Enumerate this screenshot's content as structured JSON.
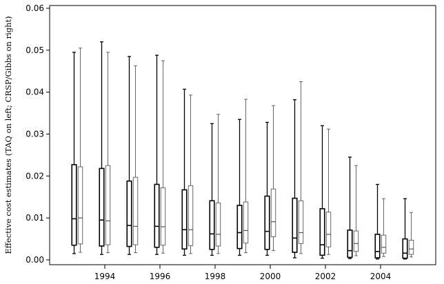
{
  "chart_data": {
    "type": "boxplot",
    "ylabel": "Effective cost estimates (TAQ on left; CRSP/Gibbs on right)",
    "xlabel": "",
    "ylim": [
      0,
      0.06
    ],
    "yticks": [
      0,
      0.01,
      0.02,
      0.03,
      0.04,
      0.05,
      0.06
    ],
    "ytick_labels": [
      "0.00",
      "0.01",
      "0.02",
      "0.03",
      "0.04",
      "0.05",
      "0.06"
    ],
    "xlim": [
      1992,
      2006
    ],
    "xticks": [
      1994,
      1996,
      1998,
      2000,
      2002,
      2004
    ],
    "xtick_labels": [
      "1994",
      "1996",
      "1998",
      "2000",
      "2002",
      "2004"
    ],
    "grid": false,
    "groups": [
      {
        "year": 1993,
        "taq": {
          "whisker_low": 0.0015,
          "q1": 0.0035,
          "median": 0.0098,
          "q3": 0.0227,
          "whisker_high": 0.0495
        },
        "crsp": {
          "whisker_low": 0.0018,
          "q1": 0.0038,
          "median": 0.01,
          "q3": 0.0222,
          "whisker_high": 0.0505
        }
      },
      {
        "year": 1994,
        "taq": {
          "whisker_low": 0.0013,
          "q1": 0.0033,
          "median": 0.0095,
          "q3": 0.0218,
          "whisker_high": 0.052
        },
        "crsp": {
          "whisker_low": 0.0017,
          "q1": 0.0036,
          "median": 0.0093,
          "q3": 0.0225,
          "whisker_high": 0.0495
        }
      },
      {
        "year": 1995,
        "taq": {
          "whisker_low": 0.0013,
          "q1": 0.0032,
          "median": 0.0082,
          "q3": 0.0188,
          "whisker_high": 0.0485
        },
        "crsp": {
          "whisker_low": 0.0017,
          "q1": 0.0036,
          "median": 0.008,
          "q3": 0.0197,
          "whisker_high": 0.0463
        }
      },
      {
        "year": 1996,
        "taq": {
          "whisker_low": 0.0013,
          "q1": 0.003,
          "median": 0.008,
          "q3": 0.018,
          "whisker_high": 0.0488
        },
        "crsp": {
          "whisker_low": 0.0016,
          "q1": 0.0035,
          "median": 0.0079,
          "q3": 0.0172,
          "whisker_high": 0.0475
        }
      },
      {
        "year": 1997,
        "taq": {
          "whisker_low": 0.0011,
          "q1": 0.0026,
          "median": 0.0072,
          "q3": 0.0167,
          "whisker_high": 0.0407
        },
        "crsp": {
          "whisker_low": 0.0015,
          "q1": 0.0034,
          "median": 0.0072,
          "q3": 0.0177,
          "whisker_high": 0.0393
        }
      },
      {
        "year": 1998,
        "taq": {
          "whisker_low": 0.0011,
          "q1": 0.0025,
          "median": 0.0062,
          "q3": 0.0141,
          "whisker_high": 0.0325
        },
        "crsp": {
          "whisker_low": 0.0015,
          "q1": 0.0033,
          "median": 0.0061,
          "q3": 0.0136,
          "whisker_high": 0.0347
        }
      },
      {
        "year": 1999,
        "taq": {
          "whisker_low": 0.0011,
          "q1": 0.0027,
          "median": 0.0065,
          "q3": 0.013,
          "whisker_high": 0.0335
        },
        "crsp": {
          "whisker_low": 0.0017,
          "q1": 0.004,
          "median": 0.007,
          "q3": 0.0138,
          "whisker_high": 0.0383
        }
      },
      {
        "year": 2000,
        "taq": {
          "whisker_low": 0.0011,
          "q1": 0.0025,
          "median": 0.0068,
          "q3": 0.0152,
          "whisker_high": 0.0328
        },
        "crsp": {
          "whisker_low": 0.0022,
          "q1": 0.0055,
          "median": 0.0091,
          "q3": 0.0169,
          "whisker_high": 0.0368
        }
      },
      {
        "year": 2001,
        "taq": {
          "whisker_low": 0.0005,
          "q1": 0.0018,
          "median": 0.0052,
          "q3": 0.0147,
          "whisker_high": 0.0382
        },
        "crsp": {
          "whisker_low": 0.0015,
          "q1": 0.0039,
          "median": 0.0065,
          "q3": 0.0141,
          "whisker_high": 0.0425
        }
      },
      {
        "year": 2002,
        "taq": {
          "whisker_low": 0.0004,
          "q1": 0.0011,
          "median": 0.0036,
          "q3": 0.0122,
          "whisker_high": 0.032
        },
        "crsp": {
          "whisker_low": 0.0013,
          "q1": 0.0031,
          "median": 0.0061,
          "q3": 0.0114,
          "whisker_high": 0.0312
        }
      },
      {
        "year": 2003,
        "taq": {
          "whisker_low": 0.0003,
          "q1": 0.0006,
          "median": 0.0022,
          "q3": 0.0071,
          "whisker_high": 0.0245
        },
        "crsp": {
          "whisker_low": 0.001,
          "q1": 0.002,
          "median": 0.0039,
          "q3": 0.0069,
          "whisker_high": 0.0225
        }
      },
      {
        "year": 2004,
        "taq": {
          "whisker_low": 0.0002,
          "q1": 0.0005,
          "median": 0.002,
          "q3": 0.0061,
          "whisker_high": 0.018
        },
        "crsp": {
          "whisker_low": 0.0008,
          "q1": 0.0016,
          "median": 0.003,
          "q3": 0.0059,
          "whisker_high": 0.0146
        }
      },
      {
        "year": 2005,
        "taq": {
          "whisker_low": 0.0002,
          "q1": 0.0004,
          "median": 0.0016,
          "q3": 0.005,
          "whisker_high": 0.0146
        },
        "crsp": {
          "whisker_low": 0.0007,
          "q1": 0.0013,
          "median": 0.0026,
          "q3": 0.0047,
          "whisker_high": 0.0113
        }
      }
    ]
  }
}
